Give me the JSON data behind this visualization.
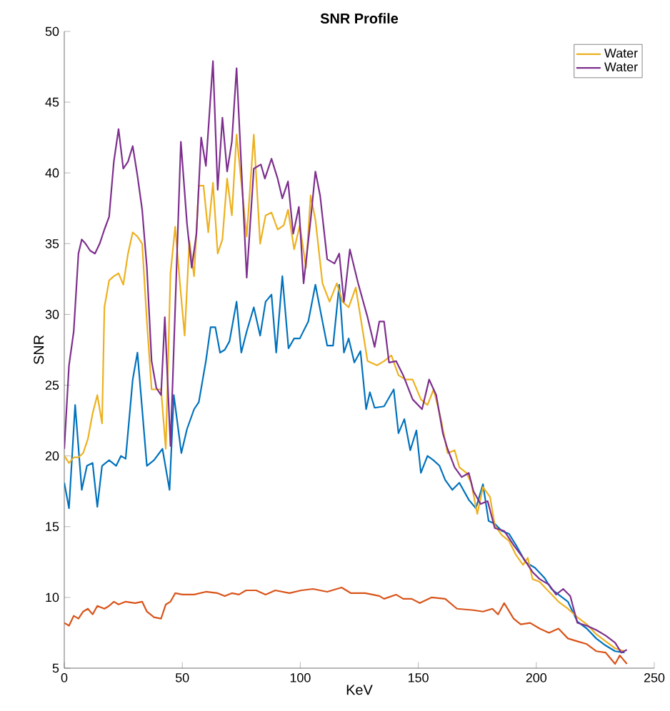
{
  "chart_data": {
    "type": "line",
    "title": "SNR Profile",
    "xlabel": "KeV",
    "ylabel": "SNR",
    "xlim": [
      0,
      250
    ],
    "xticks": [
      0,
      50,
      100,
      150,
      200,
      250
    ],
    "ylim": [
      5,
      50
    ],
    "yticks": [
      5,
      10,
      15,
      20,
      25,
      30,
      35,
      40,
      45,
      50
    ],
    "legend": "top right",
    "grid": false,
    "series": [
      {
        "color": "#0072bd",
        "x": [
          0,
          2,
          4.6,
          7.4,
          9.6,
          12,
          14,
          16,
          19,
          22,
          24,
          26,
          29,
          31,
          33,
          35,
          38,
          41.6,
          44.6,
          46.4,
          49.6,
          52,
          55,
          57,
          60,
          62,
          64,
          66,
          68,
          70,
          73,
          75,
          77.3,
          80.3,
          83,
          85.3,
          87.8,
          89.8,
          92.4,
          95,
          97.4,
          99.8,
          103.4,
          106.4,
          109.4,
          111.4,
          113.9,
          116.5,
          118.5,
          120.5,
          122.9,
          125.5,
          127.9,
          129.5,
          131.5,
          135.5,
          139.6,
          141.6,
          144.1,
          146.6,
          149.2,
          151.1,
          153.9,
          156.4,
          159,
          161.4,
          164.4,
          167.4,
          171.4,
          174.4,
          177.4,
          179.8,
          182.4,
          185.4,
          188.4,
          191.4,
          195.4,
          199.4,
          203.4,
          206.4,
          209.4,
          213.4,
          217.4,
          221.4,
          225.4,
          229.4,
          233.4,
          237.4
        ],
        "values": [
          18.1,
          16.3,
          23.6,
          17.6,
          19.3,
          19.5,
          16.4,
          19.3,
          19.7,
          19.3,
          20,
          19.8,
          25.4,
          27.3,
          23.3,
          19.3,
          19.7,
          20.5,
          17.6,
          24.3,
          20.2,
          21.9,
          23.3,
          23.8,
          26.7,
          29.1,
          29.1,
          27.3,
          27.5,
          28.1,
          30.9,
          27.3,
          28.8,
          30.5,
          28.5,
          30.9,
          31.4,
          27.3,
          32.7,
          27.6,
          28.3,
          28.3,
          29.5,
          32.1,
          29.5,
          27.8,
          27.8,
          32.1,
          27.3,
          28.3,
          26.6,
          27.4,
          23.3,
          24.5,
          23.4,
          23.5,
          24.7,
          21.6,
          22.6,
          20.4,
          21.8,
          18.8,
          20,
          19.7,
          19.3,
          18.3,
          17.6,
          18.1,
          16.9,
          16.3,
          18,
          15.4,
          15.2,
          14.7,
          14.5,
          13.7,
          12.5,
          12.1,
          11.4,
          10.6,
          10.2,
          9.7,
          8.3,
          7.8,
          7.1,
          6.6,
          6.2,
          6.1
        ]
      },
      {
        "color": "#d95319",
        "x": [
          0,
          2,
          4,
          6,
          8,
          10,
          12,
          14,
          17,
          19,
          21,
          23,
          26,
          30,
          33,
          35,
          38,
          41,
          43,
          45,
          47,
          50,
          55,
          60,
          65,
          68,
          71,
          74,
          77,
          81.3,
          85.3,
          89.4,
          95.4,
          100.4,
          105.4,
          111.4,
          117.5,
          121.5,
          127.5,
          133.5,
          135.5,
          140.6,
          143.6,
          147.2,
          150.6,
          155.6,
          161.4,
          166.4,
          173.4,
          177.4,
          181.4,
          183.8,
          186.4,
          190.4,
          193.4,
          197.4,
          201.4,
          205.4,
          209.4,
          213.4,
          217.4,
          221.4,
          225.4,
          229.4,
          233.4,
          235.4,
          238.4
        ],
        "values": [
          8.2,
          8,
          8.7,
          8.5,
          9,
          9.2,
          8.8,
          9.4,
          9.2,
          9.4,
          9.7,
          9.5,
          9.7,
          9.6,
          9.7,
          9,
          8.6,
          8.5,
          9.5,
          9.7,
          10.3,
          10.2,
          10.2,
          10.4,
          10.3,
          10.1,
          10.3,
          10.2,
          10.5,
          10.5,
          10.2,
          10.5,
          10.3,
          10.5,
          10.6,
          10.4,
          10.7,
          10.3,
          10.3,
          10.1,
          9.9,
          10.2,
          9.9,
          9.9,
          9.6,
          10,
          9.9,
          9.2,
          9.1,
          9,
          9.2,
          8.8,
          9.6,
          8.5,
          8.1,
          8.2,
          7.8,
          7.5,
          7.8,
          7.1,
          6.9,
          6.7,
          6.2,
          6.1,
          5.3,
          5.9,
          5.3
        ]
      },
      {
        "name": "Water",
        "color": "#edb120",
        "x": [
          0,
          2,
          4,
          6,
          8,
          10,
          12,
          14,
          16,
          17,
          19,
          21,
          23,
          25,
          27,
          29,
          31,
          33,
          35,
          37,
          39,
          41,
          43,
          45,
          47,
          49,
          51,
          53,
          55,
          57,
          59,
          61,
          63,
          65,
          67,
          69,
          71,
          73,
          77.3,
          80.3,
          83,
          85.3,
          87.8,
          90.4,
          93,
          94.8,
          97.4,
          99.8,
          102.4,
          104.4,
          106.4,
          109.4,
          112.4,
          115.5,
          117.9,
          120.5,
          123.5,
          126.5,
          128.5,
          132.5,
          135.5,
          138.6,
          141.6,
          144.6,
          147.6,
          151.1,
          153.9,
          156.5,
          159.6,
          162.4,
          165.4,
          167.4,
          170.4,
          172.4,
          175,
          177.4,
          180.4,
          182.4,
          185.4,
          188.4,
          191.4,
          194.4,
          196.4,
          198.4,
          201.4,
          205.4,
          209.4,
          213.4,
          217.4,
          221.4,
          225.4,
          229.4,
          233.4,
          237.4
        ],
        "values": [
          20,
          19.5,
          19.9,
          19.9,
          20.2,
          21.2,
          23,
          24.3,
          22.3,
          30.5,
          32.4,
          32.7,
          32.9,
          32.1,
          34.3,
          35.8,
          35.5,
          35,
          29.5,
          24.7,
          24.7,
          24.7,
          20.5,
          32.9,
          36.2,
          32.2,
          28.5,
          35.2,
          32.7,
          39.1,
          39.1,
          35.8,
          39.3,
          34.3,
          35.3,
          39.6,
          37,
          42.7,
          35.5,
          42.7,
          35,
          37,
          37.2,
          36,
          36.3,
          37.4,
          34.6,
          36.3,
          33.3,
          38.4,
          36.7,
          32.2,
          30.9,
          32.2,
          30.9,
          30.5,
          31.9,
          28.8,
          26.7,
          26.4,
          26.7,
          27.1,
          25.7,
          25.4,
          25.4,
          24,
          23.6,
          24.7,
          22.6,
          20.2,
          20.4,
          19.2,
          18.8,
          18.1,
          15.9,
          17.8,
          17.1,
          15.1,
          14.4,
          14,
          13,
          12.3,
          12.8,
          11.3,
          11.1,
          10.4,
          9.7,
          9.2,
          8.6,
          8.1,
          7.4,
          6.9,
          6.4,
          6.2
        ]
      },
      {
        "name": "Water",
        "color": "#7e2f8e",
        "x": [
          0,
          2,
          4,
          6,
          7.4,
          9,
          11,
          13,
          15,
          17,
          19,
          21,
          23,
          25,
          27,
          29,
          31,
          33,
          35,
          37,
          39,
          41,
          42.6,
          45,
          49.4,
          52,
          54,
          56,
          58,
          60,
          63,
          65,
          67,
          69,
          71,
          73,
          77.3,
          80.3,
          83.3,
          85,
          87.8,
          90.4,
          92.4,
          94.8,
          97,
          99.4,
          101.4,
          104.4,
          106.4,
          108.4,
          111.4,
          114.5,
          116.5,
          118.5,
          121,
          124.5,
          128.5,
          131.5,
          133.5,
          135.5,
          137.6,
          140.6,
          143.6,
          147.6,
          151.6,
          154.6,
          157.6,
          160.4,
          162.4,
          165.4,
          168.4,
          171.4,
          173.4,
          176.4,
          179.4,
          182.4,
          186.4,
          190.4,
          194.4,
          198.4,
          201.4,
          205.4,
          208.4,
          211.4,
          214.4,
          217.4,
          221.4,
          225.4,
          229.4,
          233.4,
          236,
          238.4
        ],
        "values": [
          20.5,
          26.4,
          28.8,
          34.3,
          35.3,
          35,
          34.5,
          34.3,
          35,
          36,
          36.9,
          40.8,
          43.1,
          40.3,
          40.8,
          41.9,
          39.8,
          37.4,
          33.3,
          26.7,
          24.8,
          24.3,
          29.8,
          20.7,
          42.2,
          36.4,
          33.3,
          35.7,
          42.5,
          40.5,
          47.9,
          38.8,
          43.9,
          40.1,
          42.2,
          47.4,
          32.6,
          40.3,
          40.6,
          39.6,
          41,
          39.6,
          38.2,
          39.4,
          35.7,
          37.6,
          32.2,
          36.7,
          40.1,
          38.4,
          33.9,
          33.6,
          34.3,
          30.9,
          34.6,
          32.2,
          29.8,
          27.7,
          29.5,
          29.5,
          26.6,
          26.7,
          25.7,
          24,
          23.3,
          25.4,
          24.3,
          21.6,
          20.5,
          19.2,
          18.5,
          18.8,
          17.5,
          16.6,
          16.8,
          14.9,
          14.7,
          13.7,
          12.8,
          11.8,
          11.3,
          10.9,
          10.2,
          10.6,
          10.1,
          8.2,
          8,
          7.7,
          7.3,
          6.8,
          6.1,
          6.3
        ]
      }
    ]
  }
}
